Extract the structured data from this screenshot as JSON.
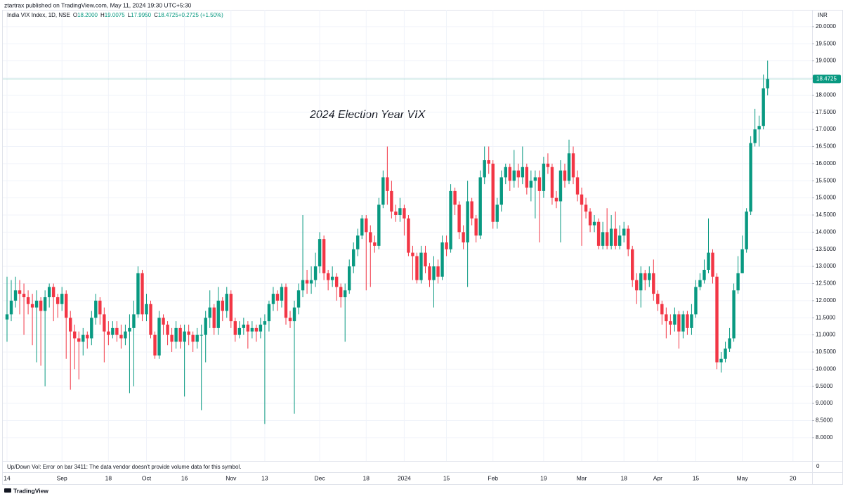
{
  "header": "ztartrax published on TradingView.com, May 11, 2024 19:30 UTC+5:30",
  "legend": {
    "symbol": "India VIX Index, 1D, NSE",
    "items": [
      {
        "label": "O",
        "value": "18.2000"
      },
      {
        "label": "H",
        "value": "19.0075"
      },
      {
        "label": "L",
        "value": "17.9950"
      },
      {
        "label": "C",
        "value": "18.4725"
      },
      {
        "label": "",
        "value": "+0.2725 (+1.50%)"
      }
    ]
  },
  "currency": "INR",
  "volume_pane": {
    "message": "Up/Down Vol: Error on bar 3411: The data vendor doesn't provide volume data for this symbol.",
    "scale_label": "0"
  },
  "footer": "TradingView",
  "chart_data": {
    "type": "candlestick",
    "annotation": "2024 Election Year VIX",
    "up_color": "#089981",
    "down_color": "#f23645",
    "grid": true,
    "ylim": [
      7.32,
      20.49
    ],
    "yticks": [
      {
        "value": 20,
        "label": "20.0000"
      },
      {
        "value": 19.5,
        "label": "19.5000"
      },
      {
        "value": 19,
        "label": "19.0000"
      },
      {
        "value": 18.5,
        "label": "18.5000"
      },
      {
        "value": 18,
        "label": "18.0000"
      },
      {
        "value": 17.5,
        "label": "17.5000"
      },
      {
        "value": 17,
        "label": "17.0000"
      },
      {
        "value": 16.5,
        "label": "16.5000"
      },
      {
        "value": 16,
        "label": "16.0000"
      },
      {
        "value": 15.5,
        "label": "15.5000"
      },
      {
        "value": 15,
        "label": "15.0000"
      },
      {
        "value": 14.5,
        "label": "14.5000"
      },
      {
        "value": 14,
        "label": "14.0000"
      },
      {
        "value": 13.5,
        "label": "13.5000"
      },
      {
        "value": 13,
        "label": "13.0000"
      },
      {
        "value": 12.5,
        "label": "12.5000"
      },
      {
        "value": 12,
        "label": "12.0000"
      },
      {
        "value": 11.5,
        "label": "11.5000"
      },
      {
        "value": 11,
        "label": "11.0000"
      },
      {
        "value": 10.5,
        "label": "10.5000"
      },
      {
        "value": 10,
        "label": "10.0000"
      },
      {
        "value": 9.5,
        "label": "9.5000"
      },
      {
        "value": 9,
        "label": "9.0000"
      },
      {
        "value": 8.5,
        "label": "8.5000"
      },
      {
        "value": 8,
        "label": "8.0000"
      }
    ],
    "categories": [
      "14",
      null,
      null,
      null,
      null,
      null,
      null,
      null,
      null,
      null,
      null,
      null,
      null,
      "Sep",
      null,
      null,
      null,
      null,
      null,
      null,
      null,
      null,
      null,
      null,
      "18",
      null,
      null,
      null,
      null,
      null,
      null,
      null,
      null,
      "Oct",
      null,
      null,
      null,
      null,
      null,
      null,
      null,
      null,
      "16",
      null,
      null,
      null,
      null,
      null,
      null,
      null,
      null,
      null,
      null,
      "Nov",
      null,
      null,
      null,
      null,
      null,
      null,
      null,
      "13",
      null,
      null,
      null,
      null,
      null,
      null,
      null,
      null,
      null,
      null,
      null,
      null,
      "Dec",
      null,
      null,
      null,
      null,
      null,
      null,
      null,
      null,
      null,
      null,
      "18",
      null,
      null,
      null,
      null,
      null,
      null,
      null,
      null,
      "2024",
      null,
      null,
      null,
      null,
      null,
      null,
      null,
      null,
      null,
      "15",
      null,
      null,
      null,
      null,
      null,
      null,
      null,
      null,
      null,
      null,
      "Feb",
      null,
      null,
      null,
      null,
      null,
      null,
      null,
      null,
      null,
      null,
      null,
      "19",
      null,
      null,
      null,
      null,
      null,
      null,
      null,
      null,
      "Mar",
      null,
      null,
      null,
      null,
      null,
      null,
      null,
      null,
      null,
      "18",
      null,
      null,
      null,
      null,
      null,
      null,
      null,
      "Apr",
      null,
      null,
      null,
      null,
      null,
      null,
      null,
      null,
      "15",
      null,
      null,
      null,
      null,
      null,
      null,
      null,
      null,
      null,
      null,
      "May",
      null,
      null,
      null,
      null,
      null,
      null,
      null,
      null,
      null,
      null,
      null,
      "20"
    ],
    "open": [
      11.45,
      11.6,
      12.0,
      12.3,
      12.2,
      12.1,
      11.9,
      11.8,
      12.0,
      11.7,
      12.1,
      12.4,
      12.1,
      11.9,
      12.2,
      11.5,
      11.1,
      10.9,
      10.8,
      11.0,
      10.9,
      11.5,
      12.0,
      11.6,
      11.1,
      11.0,
      11.2,
      11.0,
      10.9,
      11.1,
      11.2,
      11.6,
      12.8,
      11.6,
      11.9,
      11.0,
      10.4,
      11.5,
      11.3,
      11.0,
      10.8,
      11.2,
      10.8,
      11.1,
      11.0,
      10.8,
      11.0,
      11.0,
      11.5,
      11.8,
      11.2,
      12.0,
      11.7,
      12.2,
      11.4,
      11.0,
      11.2,
      11.3,
      11.1,
      11.2,
      11.1,
      11.3,
      11.4,
      11.9,
      12.2,
      12.0,
      12.4,
      11.5,
      11.4,
      11.8,
      12.3,
      12.6,
      12.5,
      12.6,
      13.0,
      13.8,
      12.8,
      12.6,
      12.7,
      12.4,
      12.1,
      12.3,
      13.0,
      13.5,
      13.9,
      14.4,
      14.0,
      13.7,
      13.6,
      14.8,
      15.6,
      15.2,
      14.6,
      14.5,
      14.7,
      14.4,
      13.4,
      13.3,
      12.6,
      13.4,
      13.0,
      12.6,
      13.0,
      12.7,
      13.7,
      13.5,
      15.2,
      14.8,
      14.0,
      13.7,
      14.9,
      14.4,
      13.9,
      15.6,
      16.1,
      16.0,
      14.3,
      14.8,
      15.6,
      15.9,
      15.5,
      15.8,
      15.6,
      15.9,
      15.3,
      15.5,
      15.6,
      15.2,
      16.0,
      15.9,
      15.0,
      14.9,
      15.8,
      15.5,
      16.3,
      15.6,
      15.1,
      14.8,
      14.6,
      14.2,
      14.3,
      13.6,
      14.0,
      13.6,
      14.1,
      13.6,
      13.9,
      14.1,
      13.5,
      12.6,
      12.3,
      12.8,
      12.6,
      12.8,
      12.2,
      11.9,
      11.6,
      11.4,
      11.3,
      11.6,
      11.1,
      11.6,
      11.2,
      11.6,
      12.4,
      12.6,
      12.9,
      13.4,
      12.7,
      10.2,
      10.3,
      10.6,
      10.9,
      12.3,
      12.8,
      13.5,
      14.6,
      16.6,
      17.0,
      17.1,
      18.2,
      null,
      null,
      null,
      null,
      null,
      null
    ],
    "high": [
      12.7,
      12.6,
      12.7,
      12.6,
      12.5,
      12.3,
      12.2,
      12.3,
      12.1,
      12.3,
      12.5,
      12.5,
      12.2,
      12.4,
      12.3,
      11.7,
      11.3,
      11.1,
      11.2,
      11.1,
      11.7,
      12.2,
      12.1,
      11.8,
      11.4,
      11.4,
      11.4,
      11.3,
      11.3,
      11.6,
      12.0,
      13.0,
      12.9,
      12.2,
      12.0,
      11.1,
      11.7,
      11.6,
      11.4,
      11.2,
      11.4,
      11.3,
      11.3,
      11.3,
      11.1,
      11.2,
      11.3,
      11.7,
      12.3,
      11.9,
      12.4,
      12.1,
      12.4,
      12.3,
      11.5,
      11.4,
      11.5,
      11.4,
      11.4,
      11.3,
      11.5,
      11.6,
      12.0,
      12.4,
      12.3,
      12.5,
      12.5,
      11.7,
      12.0,
      12.5,
      14.5,
      12.9,
      13.0,
      13.4,
      14.0,
      13.9,
      12.9,
      13.0,
      12.8,
      12.5,
      12.5,
      13.2,
      13.7,
      14.1,
      14.5,
      14.5,
      14.2,
      13.9,
      15.0,
      15.8,
      16.5,
      15.5,
      14.8,
      15.0,
      14.8,
      14.5,
      13.6,
      13.4,
      13.6,
      13.6,
      13.1,
      13.3,
      13.2,
      13.9,
      13.9,
      15.4,
      15.3,
      14.9,
      14.2,
      15.5,
      15.0,
      14.5,
      15.8,
      16.5,
      16.5,
      16.1,
      15.0,
      15.8,
      16.0,
      16.0,
      16.4,
      16.0,
      16.5,
      16.0,
      15.8,
      15.8,
      15.8,
      16.2,
      16.3,
      16.0,
      15.2,
      16.1,
      16.0,
      16.7,
      16.5,
      15.8,
      15.3,
      15.0,
      14.7,
      14.5,
      14.4,
      14.3,
      14.7,
      14.5,
      14.6,
      14.2,
      14.3,
      14.2,
      13.6,
      12.8,
      13.0,
      12.9,
      13.0,
      13.2,
      12.3,
      12.0,
      11.8,
      11.6,
      11.8,
      11.7,
      11.7,
      11.7,
      11.9,
      12.6,
      12.8,
      13.2,
      14.4,
      13.5,
      12.8,
      10.5,
      10.8,
      11.2,
      12.5,
      13.3,
      13.9,
      14.7,
      16.8,
      17.6,
      17.4,
      18.6,
      19.0075,
      null,
      null,
      null,
      null,
      null,
      null
    ],
    "low": [
      10.8,
      11.4,
      11.8,
      11.6,
      11.0,
      11.6,
      10.7,
      10.2,
      10.1,
      9.5,
      11.8,
      11.4,
      11.5,
      11.7,
      10.3,
      9.4,
      10.0,
      9.7,
      10.4,
      10.6,
      10.7,
      11.3,
      11.3,
      10.2,
      10.7,
      10.9,
      10.8,
      10.6,
      10.7,
      9.3,
      9.5,
      11.5,
      11.4,
      11.4,
      10.9,
      10.3,
      10.3,
      11.0,
      10.7,
      10.5,
      10.6,
      10.6,
      9.2,
      10.7,
      10.5,
      10.6,
      8.8,
      10.2,
      11.2,
      11.0,
      11.0,
      11.4,
      11.5,
      11.2,
      10.8,
      10.9,
      11.0,
      10.6,
      10.9,
      10.8,
      10.9,
      8.4,
      11.1,
      11.7,
      11.7,
      11.8,
      11.3,
      11.2,
      8.7,
      11.6,
      12.1,
      12.2,
      12.2,
      12.4,
      12.8,
      12.6,
      12.3,
      12.4,
      12.0,
      11.8,
      10.8,
      12.2,
      12.8,
      13.3,
      13.8,
      12.3,
      12.4,
      13.4,
      13.5,
      14.7,
      14.8,
      14.4,
      14.3,
      14.3,
      13.9,
      13.3,
      12.6,
      12.5,
      12.5,
      12.8,
      12.4,
      11.8,
      12.5,
      12.6,
      13.3,
      13.4,
      14.5,
      13.8,
      13.5,
      12.4,
      14.2,
      13.7,
      13.8,
      15.4,
      15.7,
      14.1,
      14.1,
      14.6,
      15.4,
      15.2,
      15.3,
      15.3,
      15.4,
      15.1,
      14.9,
      14.4,
      13.7,
      15.0,
      15.7,
      14.8,
      14.7,
      13.7,
      15.3,
      15.4,
      15.4,
      14.9,
      13.6,
      14.4,
      14.0,
      14.0,
      13.5,
      13.5,
      13.5,
      13.5,
      13.5,
      13.5,
      13.7,
      13.3,
      12.4,
      11.9,
      11.8,
      12.3,
      12.4,
      12.0,
      11.7,
      11.3,
      10.9,
      11.0,
      11.1,
      10.6,
      10.9,
      11.0,
      11.0,
      11.5,
      12.3,
      12.5,
      12.8,
      12.5,
      10.0,
      9.9,
      10.2,
      10.5,
      10.8,
      12.2,
      12.8,
      13.4,
      14.5,
      16.5,
      16.5,
      17.0,
      17.995,
      null,
      null,
      null,
      null,
      null,
      null
    ],
    "close": [
      11.6,
      12.0,
      12.3,
      12.2,
      12.1,
      11.9,
      11.8,
      12.0,
      11.7,
      12.1,
      12.4,
      12.1,
      11.9,
      12.2,
      11.5,
      11.1,
      10.9,
      10.8,
      11.0,
      10.9,
      11.5,
      12.0,
      11.6,
      11.1,
      11.0,
      11.2,
      11.0,
      10.9,
      11.1,
      11.2,
      11.6,
      12.8,
      11.6,
      11.9,
      11.0,
      10.4,
      11.5,
      11.3,
      11.0,
      10.8,
      11.2,
      10.8,
      11.1,
      11.0,
      10.8,
      11.0,
      11.0,
      11.5,
      11.8,
      11.2,
      12.0,
      11.7,
      12.2,
      11.4,
      11.0,
      11.2,
      11.3,
      11.1,
      11.2,
      11.1,
      11.3,
      11.4,
      11.9,
      12.2,
      12.0,
      12.4,
      11.5,
      11.4,
      11.8,
      12.3,
      12.6,
      12.5,
      12.6,
      13.0,
      13.8,
      12.8,
      12.6,
      12.7,
      12.4,
      12.1,
      12.3,
      13.0,
      13.5,
      13.9,
      14.4,
      14.0,
      13.7,
      13.6,
      14.8,
      15.6,
      15.2,
      14.6,
      14.5,
      14.7,
      14.4,
      13.4,
      13.3,
      12.6,
      13.4,
      13.0,
      12.6,
      13.0,
      12.7,
      13.7,
      13.5,
      15.2,
      14.8,
      14.0,
      13.7,
      14.9,
      14.4,
      13.9,
      15.6,
      16.1,
      16.0,
      14.3,
      14.8,
      15.6,
      15.9,
      15.5,
      15.8,
      15.6,
      15.9,
      15.3,
      15.5,
      15.6,
      15.2,
      16.0,
      15.9,
      15.0,
      14.9,
      15.8,
      15.5,
      16.3,
      15.6,
      15.1,
      14.8,
      14.6,
      14.2,
      14.3,
      13.6,
      14.0,
      13.6,
      14.1,
      13.6,
      13.9,
      14.1,
      13.5,
      12.6,
      12.3,
      12.8,
      12.6,
      12.8,
      12.2,
      11.9,
      11.6,
      11.4,
      11.3,
      11.6,
      11.1,
      11.6,
      11.2,
      11.6,
      12.4,
      12.6,
      12.9,
      13.4,
      12.7,
      10.2,
      10.3,
      10.6,
      10.9,
      12.3,
      12.8,
      13.5,
      14.6,
      16.6,
      17.0,
      17.1,
      18.2,
      18.4725,
      null,
      null,
      null,
      null,
      null,
      null
    ]
  }
}
